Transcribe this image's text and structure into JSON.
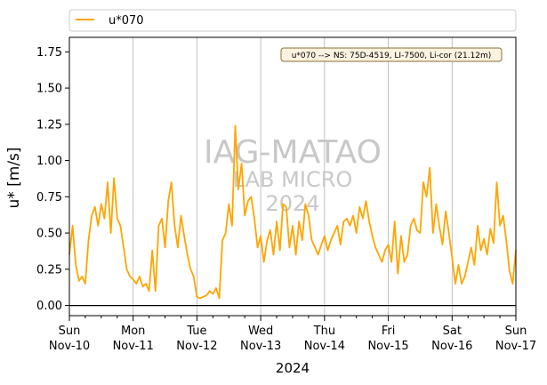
{
  "chart_data": {
    "type": "line",
    "xlabel": "2024",
    "ylabel": "u* [m/s]",
    "ylim": [
      -0.07,
      1.85
    ],
    "xlim": [
      "2024-11-10",
      "2024-11-17"
    ],
    "grid": "vertical at major ticks",
    "legend": {
      "placement": "top, above plot",
      "entries": [
        "u*070"
      ]
    },
    "annotation": "u*070 --> NS: 75D-4519, LI-7500, Li-cor (21.12m)",
    "watermark": {
      "line1": "IAG-MATAO",
      "line2": "LAB MICRO",
      "line3": "2024"
    },
    "reference_line_y": 0.0,
    "x_ticks": [
      {
        "day": "Sun",
        "date": "Nov-10"
      },
      {
        "day": "Mon",
        "date": "Nov-11"
      },
      {
        "day": "Tue",
        "date": "Nov-12"
      },
      {
        "day": "Wed",
        "date": "Nov-13"
      },
      {
        "day": "Thu",
        "date": "Nov-14"
      },
      {
        "day": "Fri",
        "date": "Nov-15"
      },
      {
        "day": "Sat",
        "date": "Nov-16"
      },
      {
        "day": "Sun",
        "date": "Nov-17"
      }
    ],
    "y_ticks": [
      "0.00",
      "0.25",
      "0.50",
      "0.75",
      "1.00",
      "1.25",
      "1.50",
      "1.75"
    ],
    "series": [
      {
        "name": "u*070",
        "color": "#ffa500",
        "x_unit": "days since Nov-10 00:00",
        "x": [
          0.0,
          0.05,
          0.1,
          0.15,
          0.2,
          0.25,
          0.3,
          0.35,
          0.4,
          0.45,
          0.5,
          0.55,
          0.6,
          0.65,
          0.7,
          0.75,
          0.8,
          0.85,
          0.9,
          0.95,
          1.0,
          1.05,
          1.1,
          1.15,
          1.2,
          1.25,
          1.3,
          1.35,
          1.4,
          1.45,
          1.5,
          1.55,
          1.6,
          1.65,
          1.7,
          1.75,
          1.8,
          1.85,
          1.9,
          1.95,
          2.0,
          2.05,
          2.1,
          2.15,
          2.2,
          2.25,
          2.3,
          2.35,
          2.4,
          2.45,
          2.5,
          2.55,
          2.6,
          2.65,
          2.7,
          2.75,
          2.8,
          2.85,
          2.9,
          2.95,
          3.0,
          3.05,
          3.1,
          3.15,
          3.2,
          3.25,
          3.3,
          3.35,
          3.4,
          3.45,
          3.5,
          3.55,
          3.6,
          3.65,
          3.7,
          3.75,
          3.8,
          3.85,
          3.9,
          3.95,
          4.0,
          4.05,
          4.1,
          4.15,
          4.2,
          4.25,
          4.3,
          4.35,
          4.4,
          4.45,
          4.5,
          4.55,
          4.6,
          4.65,
          4.7,
          4.75,
          4.8,
          4.85,
          4.9,
          4.95,
          5.0,
          5.05,
          5.1,
          5.15,
          5.2,
          5.25,
          5.3,
          5.35,
          5.4,
          5.45,
          5.5,
          5.55,
          5.6,
          5.65,
          5.7,
          5.75,
          5.8,
          5.85,
          5.9,
          5.95,
          6.0,
          6.05,
          6.1,
          6.15,
          6.2,
          6.25,
          6.3,
          6.35,
          6.4,
          6.45,
          6.5,
          6.55,
          6.6,
          6.65,
          6.7,
          6.75,
          6.8,
          6.85,
          6.9,
          6.95,
          7.0
        ],
        "y": [
          0.35,
          0.55,
          0.28,
          0.17,
          0.2,
          0.15,
          0.45,
          0.62,
          0.68,
          0.55,
          0.7,
          0.6,
          0.85,
          0.5,
          0.88,
          0.6,
          0.55,
          0.4,
          0.25,
          0.2,
          0.18,
          0.15,
          0.2,
          0.13,
          0.15,
          0.1,
          0.38,
          0.1,
          0.55,
          0.6,
          0.4,
          0.72,
          0.85,
          0.55,
          0.4,
          0.62,
          0.48,
          0.35,
          0.25,
          0.2,
          0.06,
          0.05,
          0.06,
          0.07,
          0.1,
          0.08,
          0.12,
          0.05,
          0.45,
          0.5,
          0.7,
          0.55,
          1.24,
          0.8,
          0.98,
          0.62,
          0.72,
          0.75,
          0.6,
          0.4,
          0.48,
          0.3,
          0.45,
          0.52,
          0.35,
          0.58,
          0.38,
          0.7,
          0.68,
          0.4,
          0.55,
          0.35,
          0.58,
          0.45,
          0.7,
          0.62,
          0.45,
          0.4,
          0.35,
          0.42,
          0.48,
          0.38,
          0.45,
          0.5,
          0.55,
          0.42,
          0.58,
          0.6,
          0.55,
          0.62,
          0.5,
          0.68,
          0.6,
          0.72,
          0.58,
          0.48,
          0.4,
          0.35,
          0.3,
          0.38,
          0.42,
          0.3,
          0.58,
          0.22,
          0.48,
          0.3,
          0.35,
          0.55,
          0.6,
          0.52,
          0.5,
          0.85,
          0.75,
          0.95,
          0.5,
          0.7,
          0.55,
          0.42,
          0.65,
          0.5,
          0.33,
          0.15,
          0.28,
          0.15,
          0.2,
          0.3,
          0.4,
          0.28,
          0.55,
          0.38,
          0.46,
          0.35,
          0.53,
          0.43,
          0.85,
          0.55,
          0.62,
          0.45,
          0.24,
          0.15,
          0.38
        ]
      }
    ]
  }
}
